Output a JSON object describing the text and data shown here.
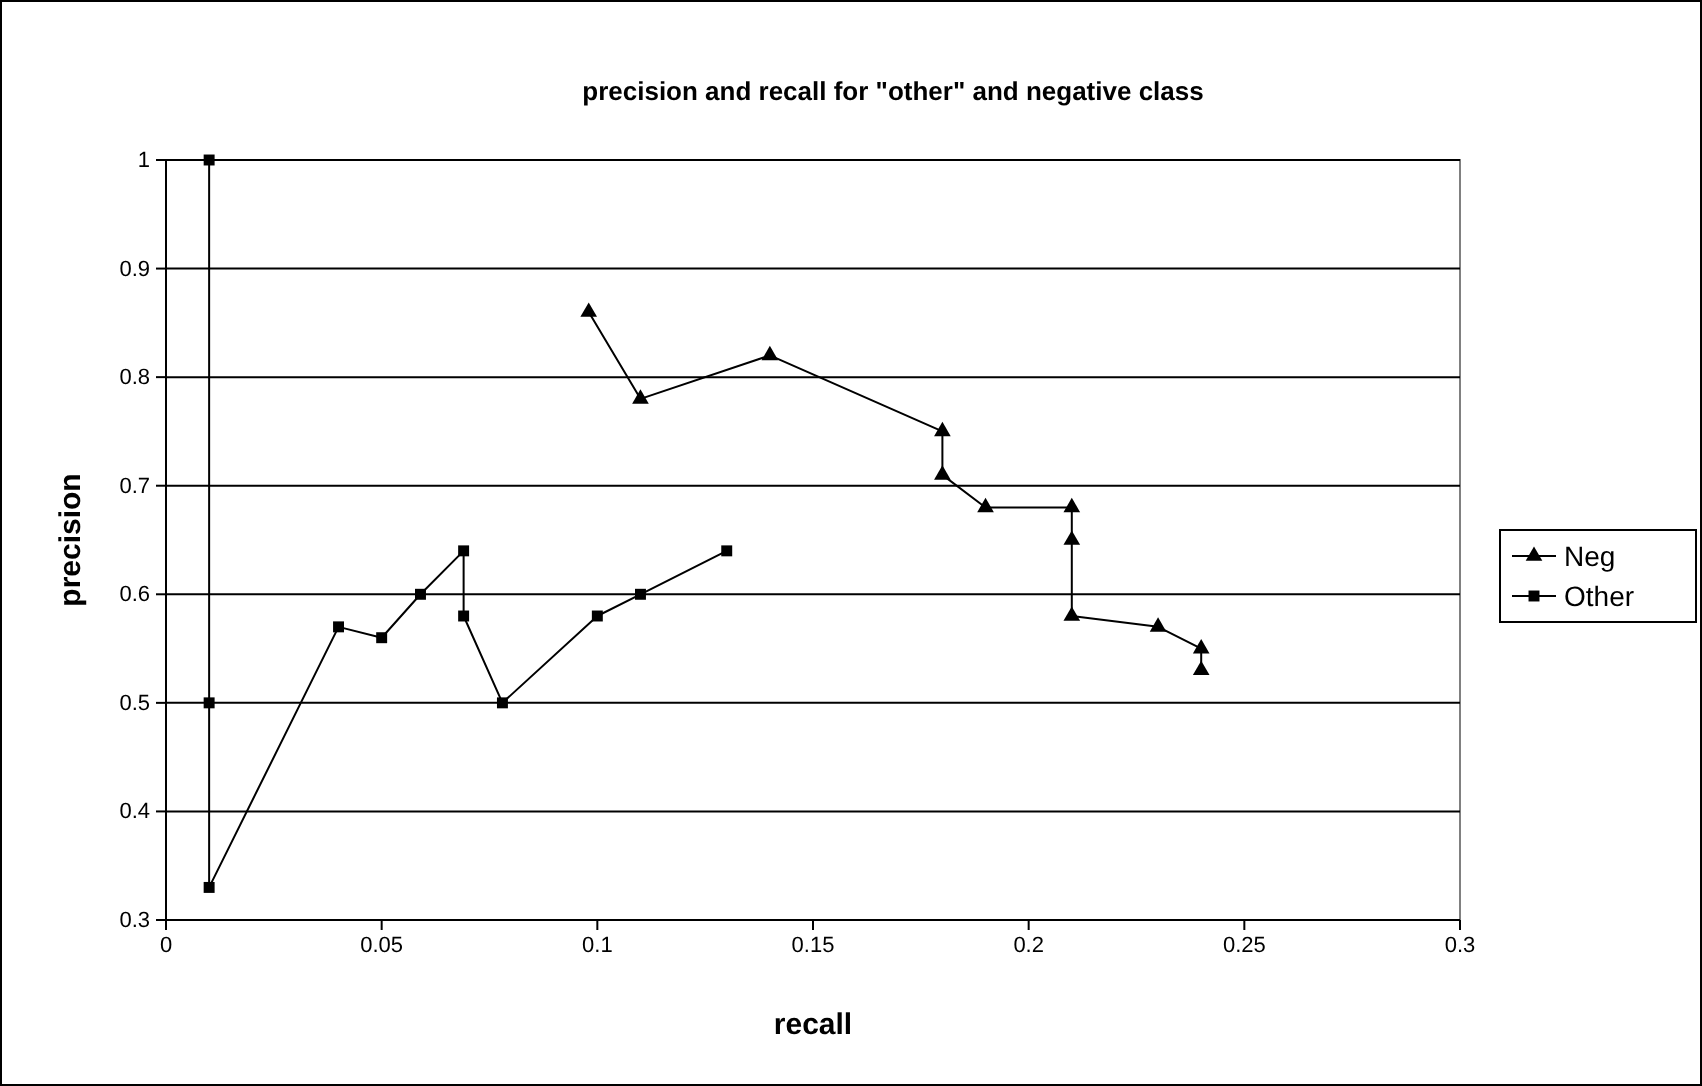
{
  "chart_data": {
    "type": "line",
    "title": "precision and recall for \"other\" and negative class",
    "xlabel": "recall",
    "ylabel": "precision",
    "xlim": [
      0,
      0.3
    ],
    "xticks": [
      0,
      0.05,
      0.1,
      0.15,
      0.2,
      0.25,
      0.3
    ],
    "ylim": [
      0.3,
      1
    ],
    "yticks": [
      0.3,
      0.4,
      0.5,
      0.6,
      0.7,
      0.8,
      0.9,
      1
    ],
    "grid": "y",
    "legend": "right",
    "line_style": "solid",
    "series": [
      {
        "name": "Neg",
        "color": "#000000",
        "marker": "triangle",
        "x": [
          0.098,
          0.11,
          0.14,
          0.18,
          0.18,
          0.19,
          0.21,
          0.21,
          0.21,
          0.23,
          0.24,
          0.24
        ],
        "values": [
          0.86,
          0.78,
          0.82,
          0.75,
          0.71,
          0.68,
          0.68,
          0.65,
          0.58,
          0.57,
          0.55,
          0.53
        ]
      },
      {
        "name": "Other",
        "color": "#000000",
        "marker": "square",
        "x": [
          0.01,
          0.01,
          0.01,
          0.04,
          0.05,
          0.059,
          0.069,
          0.069,
          0.078,
          0.1,
          0.11,
          0.13
        ],
        "values": [
          1.0,
          0.5,
          0.33,
          0.57,
          0.56,
          0.6,
          0.64,
          0.58,
          0.5,
          0.58,
          0.6,
          0.64
        ]
      }
    ]
  }
}
